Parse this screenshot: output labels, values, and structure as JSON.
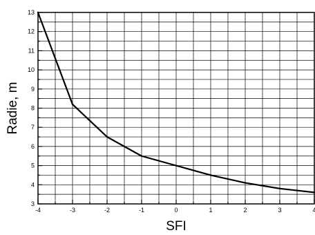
{
  "chart_data": {
    "type": "line",
    "title": "",
    "xlabel": "SFI",
    "ylabel": "Radie, m",
    "xlim": [
      -4,
      4
    ],
    "ylim": [
      3,
      13
    ],
    "grid": true,
    "x_major_ticks": [
      -4,
      -3,
      -2,
      -1,
      0,
      1,
      2,
      3,
      4
    ],
    "y_major_ticks": [
      3,
      4,
      5,
      6,
      7,
      8,
      9,
      10,
      11,
      12,
      13
    ],
    "x_minor_step": 0.5,
    "y_minor_step": 0.5,
    "series": [
      {
        "x": [
          -4,
          -3,
          -2,
          -1,
          0,
          1,
          2,
          3,
          4
        ],
        "values": [
          13.0,
          8.2,
          6.5,
          5.5,
          5.0,
          4.5,
          4.1,
          3.8,
          3.6
        ]
      }
    ],
    "colors": {
      "line": "#000000",
      "grid": "#000000",
      "axis": "#000000"
    }
  }
}
